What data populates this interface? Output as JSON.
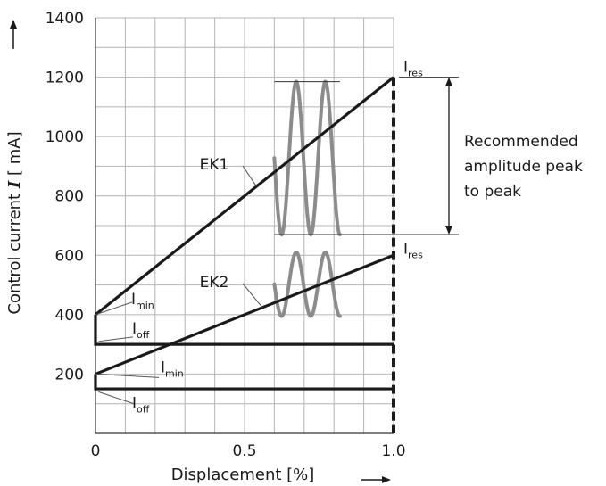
{
  "chart_data": {
    "type": "line",
    "xlabel": "Displacement [%]",
    "ylabel": {
      "prefix": "Control current ",
      "symbol": "I",
      "suffix": " [ mA]"
    },
    "xlim": [
      0,
      1.0
    ],
    "ylim": [
      0,
      1400
    ],
    "x_ticks": [
      {
        "value": 0,
        "label": "0"
      },
      {
        "value": 0.5,
        "label": "0.5"
      },
      {
        "value": 1.0,
        "label": "1.0"
      }
    ],
    "y_ticks": [
      {
        "value": 200,
        "label": "200"
      },
      {
        "value": 400,
        "label": "400"
      },
      {
        "value": 600,
        "label": "600"
      },
      {
        "value": 800,
        "label": "800"
      },
      {
        "value": 1000,
        "label": "1000"
      },
      {
        "value": 1200,
        "label": "1200"
      },
      {
        "value": 1400,
        "label": "1400"
      }
    ],
    "grid": true,
    "series": [
      {
        "name": "EK1",
        "x": [
          0,
          1.0
        ],
        "y": [
          400,
          1200
        ]
      },
      {
        "name": "EK2",
        "x": [
          0,
          1.0
        ],
        "y": [
          200,
          600
        ]
      }
    ],
    "off_levels": [
      300,
      150
    ],
    "rectangles": [
      {
        "x": [
          0,
          1.0
        ],
        "y": [
          300,
          400
        ]
      },
      {
        "x": [
          0,
          1.0
        ],
        "y": [
          150,
          200
        ]
      }
    ],
    "end_marker_x": 1.0,
    "oscillations": [
      {
        "series": "EK1",
        "y_min": 670,
        "y_max": 1185,
        "x_start": 0.6,
        "x_end": 0.82
      },
      {
        "series": "EK2",
        "y_min": 395,
        "y_max": 610,
        "x_start": 0.6,
        "x_end": 0.82
      }
    ],
    "annotations": {
      "recommended_amplitude": [
        "Recommended",
        "amplitude peak",
        "to peak"
      ],
      "range": [
        670,
        1200
      ],
      "labels": [
        {
          "main": "I",
          "sub": "res",
          "ref": "EK1"
        },
        {
          "main": "I",
          "sub": "res",
          "ref": "EK2"
        },
        {
          "main": "I",
          "sub": "min",
          "ref": "EK1"
        },
        {
          "main": "I",
          "sub": "off",
          "ref": "EK1"
        },
        {
          "main": "I",
          "sub": "min",
          "ref": "EK2"
        },
        {
          "main": "I",
          "sub": "off",
          "ref": "EK2"
        }
      ]
    },
    "colors": {
      "lines": "#1a1a1a",
      "oscillation": "#8c8c8c",
      "grid": "#b4b4b4"
    }
  }
}
